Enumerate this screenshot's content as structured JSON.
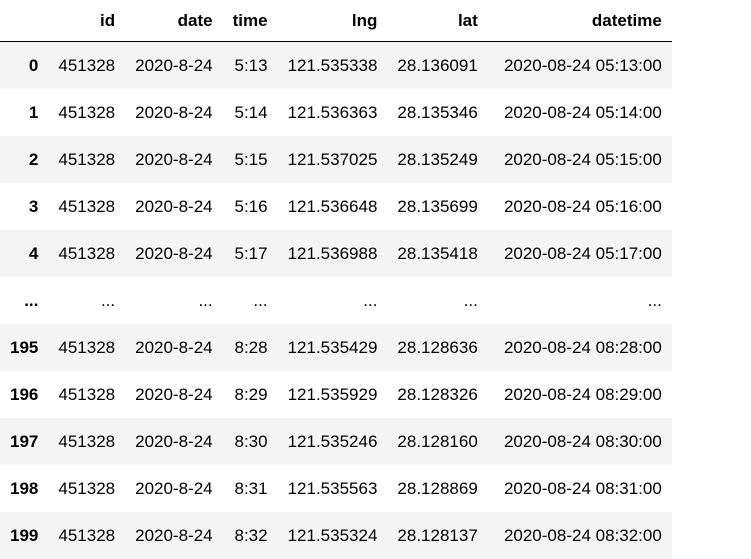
{
  "table": {
    "columns": [
      "id",
      "date",
      "time",
      "lng",
      "lat",
      "datetime"
    ],
    "rows": [
      {
        "index": "0",
        "cells": [
          "451328",
          "2020-8-24",
          "5:13",
          "121.535338",
          "28.136091",
          "2020-08-24 05:13:00"
        ]
      },
      {
        "index": "1",
        "cells": [
          "451328",
          "2020-8-24",
          "5:14",
          "121.536363",
          "28.135346",
          "2020-08-24 05:14:00"
        ]
      },
      {
        "index": "2",
        "cells": [
          "451328",
          "2020-8-24",
          "5:15",
          "121.537025",
          "28.135249",
          "2020-08-24 05:15:00"
        ]
      },
      {
        "index": "3",
        "cells": [
          "451328",
          "2020-8-24",
          "5:16",
          "121.536648",
          "28.135699",
          "2020-08-24 05:16:00"
        ]
      },
      {
        "index": "4",
        "cells": [
          "451328",
          "2020-8-24",
          "5:17",
          "121.536988",
          "28.135418",
          "2020-08-24 05:17:00"
        ]
      },
      {
        "index": "...",
        "cells": [
          "...",
          "...",
          "...",
          "...",
          "...",
          "..."
        ]
      },
      {
        "index": "195",
        "cells": [
          "451328",
          "2020-8-24",
          "8:28",
          "121.535429",
          "28.128636",
          "2020-08-24 08:28:00"
        ]
      },
      {
        "index": "196",
        "cells": [
          "451328",
          "2020-8-24",
          "8:29",
          "121.535929",
          "28.128326",
          "2020-08-24 08:29:00"
        ]
      },
      {
        "index": "197",
        "cells": [
          "451328",
          "2020-8-24",
          "8:30",
          "121.535246",
          "28.128160",
          "2020-08-24 08:30:00"
        ]
      },
      {
        "index": "198",
        "cells": [
          "451328",
          "2020-8-24",
          "8:31",
          "121.535563",
          "28.128869",
          "2020-08-24 08:31:00"
        ]
      },
      {
        "index": "199",
        "cells": [
          "451328",
          "2020-8-24",
          "8:32",
          "121.535324",
          "28.128137",
          "2020-08-24 08:32:00"
        ]
      }
    ]
  }
}
